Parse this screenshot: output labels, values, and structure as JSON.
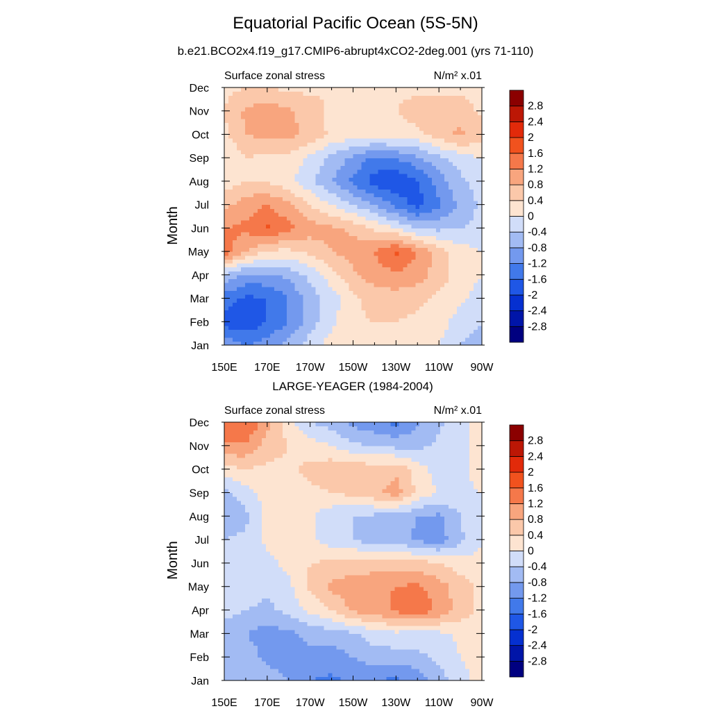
{
  "title": "Equatorial Pacific Ocean (5S-5N)",
  "subtitle": "b.e21.BCO2x4.f19_g17.CMIP6-abrupt4xCO2-2deg.001 (yrs 71-110)",
  "colors": {
    "levels": [
      -3.2,
      -2.8,
      -2.4,
      -2.0,
      -1.6,
      -1.2,
      -0.8,
      -0.4,
      0,
      0.4,
      0.8,
      1.2,
      1.6,
      2.0,
      2.4,
      2.8,
      3.2
    ],
    "fills": [
      "#000080",
      "#0015a8",
      "#0530d0",
      "#1f57e6",
      "#4179ea",
      "#7399ee",
      "#a2bbf3",
      "#d1ddf9",
      "#fde4d1",
      "#fbc8aa",
      "#f8a57e",
      "#f5784a",
      "#f1521e",
      "#e22a0a",
      "#bc1705",
      "#8b0000"
    ]
  },
  "chart_data": [
    {
      "type": "heatmap",
      "panel_title": "",
      "left_label": "Surface zonal stress",
      "right_label": "N/m² x.01",
      "ylabel": "Month",
      "x": [
        150,
        160,
        170,
        180,
        190,
        200,
        210,
        220,
        230,
        240,
        250,
        260,
        270
      ],
      "y": [
        "Jan",
        "Feb",
        "Mar",
        "Apr",
        "May",
        "Jun",
        "Jul",
        "Aug",
        "Sep",
        "Oct",
        "Nov",
        "Dec"
      ],
      "x_ticks": [
        "150E",
        "170E",
        "170W",
        "150W",
        "130W",
        "110W",
        "90W"
      ],
      "y_ticks": [
        "Jan",
        "Feb",
        "Mar",
        "Apr",
        "May",
        "Jun",
        "Jul",
        "Aug",
        "Sep",
        "Oct",
        "Nov",
        "Dec"
      ],
      "colorbar_labels": [
        "2.8",
        "2.4",
        "2",
        "1.6",
        "1.2",
        "0.8",
        "0.4",
        "0",
        "-0.4",
        "-0.8",
        "-1.2",
        "-1.6",
        "-2",
        "-2.4",
        "-2.8"
      ],
      "values": [
        [
          -0.8,
          -1.2,
          -1.0,
          -0.6,
          -0.2,
          0.2,
          0.3,
          0.3,
          0.2,
          0.1,
          0.0,
          -0.4,
          -0.6
        ],
        [
          -1.8,
          -1.9,
          -1.6,
          -1.2,
          -0.6,
          -0.1,
          0.3,
          0.4,
          0.4,
          0.3,
          0.2,
          -0.2,
          -0.4
        ],
        [
          -1.4,
          -1.7,
          -1.6,
          -1.2,
          -0.6,
          -0.2,
          0.3,
          0.6,
          0.6,
          0.5,
          0.3,
          0.1,
          -0.2
        ],
        [
          -0.5,
          -0.9,
          -0.9,
          -0.7,
          -0.3,
          0.2,
          0.7,
          1.0,
          1.1,
          1.0,
          0.6,
          0.2,
          0.0
        ],
        [
          1.5,
          0.8,
          0.3,
          0.3,
          0.5,
          0.8,
          1.0,
          1.2,
          1.7,
          1.2,
          0.6,
          0.2,
          0.0
        ],
        [
          1.2,
          1.3,
          1.7,
          1.3,
          1.0,
          0.9,
          0.7,
          0.3,
          0.0,
          -0.4,
          -0.5,
          -0.4,
          -0.3
        ],
        [
          0.7,
          1.0,
          1.2,
          0.9,
          0.4,
          0.0,
          -0.4,
          -0.8,
          -1.3,
          -1.8,
          -1.3,
          -0.7,
          -0.3
        ],
        [
          0.2,
          0.4,
          0.4,
          0.1,
          -0.3,
          -0.8,
          -1.3,
          -1.8,
          -2.0,
          -1.6,
          -1.0,
          -0.5,
          -0.2
        ],
        [
          0.0,
          0.4,
          0.3,
          0.3,
          -0.1,
          -0.5,
          -0.9,
          -1.3,
          -1.2,
          -0.9,
          -0.5,
          -0.2,
          0.0
        ],
        [
          0.3,
          0.8,
          0.9,
          0.9,
          0.7,
          0.3,
          0.2,
          0.2,
          0.2,
          0.3,
          0.6,
          0.9,
          0.6
        ],
        [
          0.4,
          0.9,
          1.0,
          0.9,
          0.6,
          0.3,
          0.2,
          0.2,
          0.4,
          0.6,
          0.7,
          0.6,
          0.3
        ],
        [
          0.3,
          0.4,
          0.4,
          0.3,
          0.3,
          0.4,
          0.4,
          0.4,
          0.3,
          0.3,
          0.3,
          0.3,
          0.3
        ]
      ]
    },
    {
      "type": "heatmap",
      "panel_title": "LARGE-YEAGER (1984-2004)",
      "left_label": "Surface zonal stress",
      "right_label": "N/m² x.01",
      "ylabel": "Month",
      "x": [
        150,
        160,
        170,
        180,
        190,
        200,
        210,
        220,
        230,
        240,
        250,
        260,
        270
      ],
      "y": [
        "Jan",
        "Feb",
        "Mar",
        "Apr",
        "May",
        "Jun",
        "Jul",
        "Aug",
        "Sep",
        "Oct",
        "Nov",
        "Dec"
      ],
      "x_ticks": [
        "150E",
        "170E",
        "170W",
        "150W",
        "130W",
        "110W",
        "90W"
      ],
      "y_ticks": [
        "Jan",
        "Feb",
        "Mar",
        "Apr",
        "May",
        "Jun",
        "Jul",
        "Aug",
        "Sep",
        "Oct",
        "Nov",
        "Dec"
      ],
      "colorbar_labels": [
        "2.8",
        "2.4",
        "2",
        "1.6",
        "1.2",
        "0.8",
        "0.4",
        "0",
        "-0.4",
        "-0.8",
        "-1.2",
        "-1.6",
        "-2",
        "-2.4",
        "-2.8"
      ],
      "values": [
        [
          -0.4,
          -0.5,
          -0.6,
          -0.8,
          -1.2,
          -1.3,
          -1.1,
          -1.2,
          -1.3,
          -1.1,
          -0.6,
          -0.1,
          0.1
        ],
        [
          -0.4,
          -0.6,
          -0.9,
          -1.0,
          -0.9,
          -1.0,
          -0.8,
          -0.6,
          -0.6,
          -0.5,
          -0.3,
          0.0,
          0.1
        ],
        [
          -0.5,
          -0.8,
          -1.0,
          -0.9,
          -0.7,
          -0.6,
          -0.5,
          -0.2,
          -0.1,
          -0.2,
          -0.1,
          0.1,
          0.1
        ],
        [
          -0.3,
          -0.4,
          -0.5,
          -0.3,
          0.1,
          0.4,
          0.9,
          1.0,
          1.3,
          1.5,
          1.1,
          0.6,
          0.3
        ],
        [
          -0.2,
          -0.2,
          -0.3,
          -0.1,
          0.5,
          0.9,
          1.0,
          1.1,
          1.2,
          1.3,
          1.0,
          0.6,
          0.3
        ],
        [
          -0.3,
          -0.2,
          -0.1,
          0.1,
          0.4,
          0.5,
          0.6,
          0.6,
          0.6,
          0.6,
          0.4,
          0.2,
          0.1
        ],
        [
          -0.4,
          -0.3,
          0.1,
          0.2,
          0.1,
          -0.2,
          -0.4,
          -0.6,
          -0.6,
          -0.9,
          -1.0,
          -0.5,
          0.0
        ],
        [
          -0.8,
          -0.5,
          0.1,
          0.2,
          0.1,
          -0.3,
          -0.4,
          -0.5,
          -0.6,
          -0.8,
          -0.9,
          -0.4,
          0.0
        ],
        [
          -0.5,
          -0.2,
          0.2,
          0.3,
          0.3,
          0.4,
          0.5,
          0.7,
          1.0,
          0.3,
          0.0,
          -0.1,
          0.0
        ],
        [
          0.2,
          0.4,
          0.3,
          0.3,
          0.5,
          0.7,
          0.7,
          0.6,
          0.7,
          0.2,
          -0.2,
          -0.2,
          0.3
        ],
        [
          1.2,
          1.1,
          0.6,
          0.4,
          0.2,
          0.0,
          -0.3,
          -0.4,
          -0.5,
          -0.5,
          -0.3,
          -0.1,
          0.2
        ],
        [
          1.2,
          1.7,
          0.9,
          0.2,
          -0.4,
          -0.6,
          -0.9,
          -1.1,
          -1.3,
          -0.9,
          -0.5,
          -0.1,
          0.1
        ]
      ]
    }
  ]
}
